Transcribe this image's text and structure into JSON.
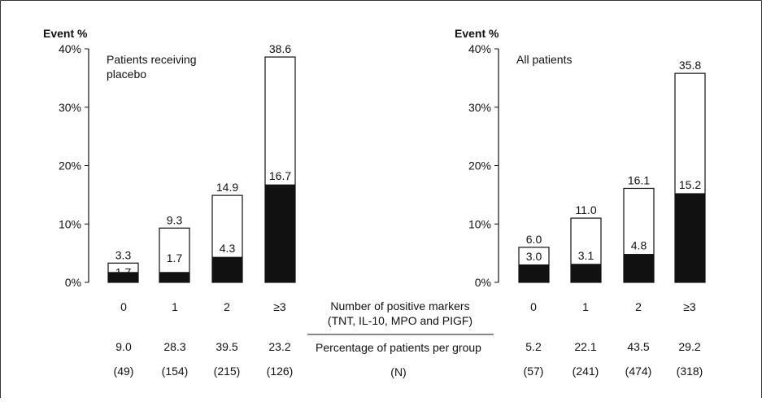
{
  "chart_data": [
    {
      "type": "bar",
      "panel_label": "Patients receiving placebo",
      "ylabel": "Event %",
      "ylim": [
        0,
        40
      ],
      "yticks": [
        "0%",
        "10%",
        "20%",
        "30%",
        "40%"
      ],
      "categories": [
        "0",
        "1",
        "2",
        "≥3"
      ],
      "series": [
        {
          "values": [
            3.3,
            9.3,
            14.9,
            38.6
          ]
        },
        {
          "values": [
            1.7,
            1.7,
            4.3,
            16.7
          ]
        }
      ],
      "percentages": [
        "9.0",
        "28.3",
        "39.5",
        "23.2"
      ],
      "counts": [
        "(49)",
        "(154)",
        "(215)",
        "(126)"
      ]
    },
    {
      "type": "bar",
      "panel_label": "All patients",
      "ylabel": "Event %",
      "ylim": [
        0,
        40
      ],
      "yticks": [
        "0%",
        "10%",
        "20%",
        "30%",
        "40%"
      ],
      "categories": [
        "0",
        "1",
        "2",
        "≥3"
      ],
      "series": [
        {
          "values": [
            6.0,
            11.0,
            16.1,
            35.8
          ]
        },
        {
          "values": [
            3.0,
            3.1,
            4.8,
            15.2
          ]
        }
      ],
      "percentages": [
        "5.2",
        "22.1",
        "43.5",
        "29.2"
      ],
      "counts": [
        "(57)",
        "(241)",
        "(474)",
        "(318)"
      ]
    }
  ],
  "center_labels": {
    "markers_line1": "Number of positive markers",
    "markers_line2": "(TNT, IL-10, MPO and PIGF)",
    "percentage_label": "Percentage of patients per group",
    "n_label": "(N)"
  },
  "colors": {
    "fill_dark": "#111111",
    "fill_light": "#ffffff",
    "stroke": "#111111"
  }
}
